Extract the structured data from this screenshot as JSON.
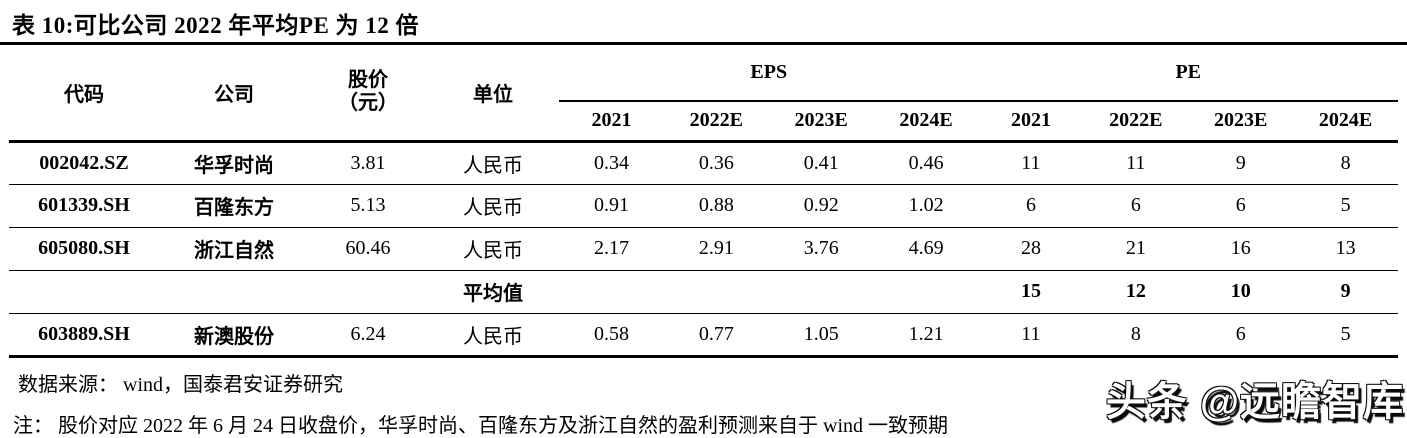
{
  "page": {
    "title": "表 10:可比公司 2022 年平均PE 为 12 倍"
  },
  "table": {
    "headers": {
      "code": "代码",
      "company": "公司",
      "price_line1": "股价",
      "price_line2": "（元）",
      "unit": "单位",
      "eps_group": "EPS",
      "pe_group": "PE",
      "years": [
        "2021",
        "2022E",
        "2023E",
        "2024E"
      ]
    },
    "rows": [
      {
        "type": "data",
        "code": "002042.SZ",
        "company": "华孚时尚",
        "price": "3.81",
        "unit": "人民币",
        "eps": [
          "0.34",
          "0.36",
          "0.41",
          "0.46"
        ],
        "pe": [
          "11",
          "11",
          "9",
          "8"
        ]
      },
      {
        "type": "data",
        "code": "601339.SH",
        "company": "百隆东方",
        "price": "5.13",
        "unit": "人民币",
        "eps": [
          "0.91",
          "0.88",
          "0.92",
          "1.02"
        ],
        "pe": [
          "6",
          "6",
          "6",
          "5"
        ]
      },
      {
        "type": "data",
        "code": "605080.SH",
        "company": "浙江自然",
        "price": "60.46",
        "unit": "人民币",
        "eps": [
          "2.17",
          "2.91",
          "3.76",
          "4.69"
        ],
        "pe": [
          "28",
          "21",
          "16",
          "13"
        ]
      },
      {
        "type": "average",
        "label": "平均值",
        "eps": [
          "",
          "",
          "",
          ""
        ],
        "pe": [
          "15",
          "12",
          "10",
          "9"
        ]
      },
      {
        "type": "data",
        "code": "603889.SH",
        "company": "新澳股份",
        "price": "6.24",
        "unit": "人民币",
        "eps": [
          "0.58",
          "0.77",
          "1.05",
          "1.21"
        ],
        "pe": [
          "11",
          "8",
          "6",
          "5"
        ]
      }
    ]
  },
  "footer": {
    "source": "数据来源： wind，国泰君安证券研究",
    "note": "注： 股价对应 2022 年 6 月 24 日收盘价，华孚时尚、百隆东方及浙江自然的盈利预测来自于 wind 一致预期"
  },
  "watermark": {
    "text": "头条 @远瞻智库"
  }
}
